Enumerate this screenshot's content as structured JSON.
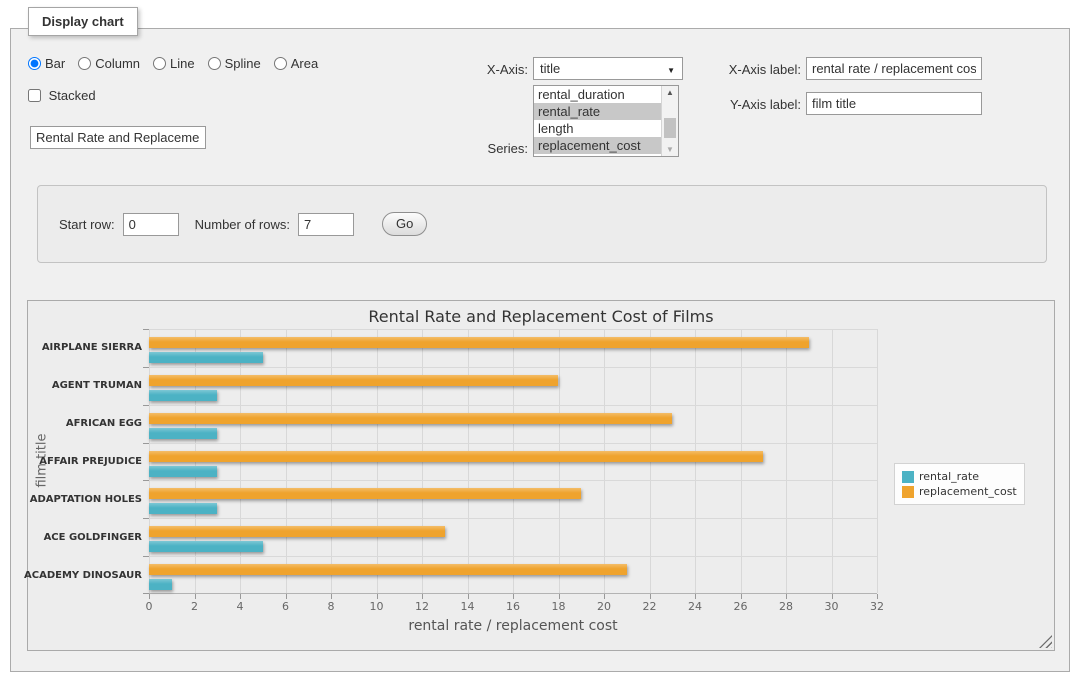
{
  "fieldset_legend": "Display chart",
  "chart_type_options": [
    {
      "label": "Bar",
      "selected": true
    },
    {
      "label": "Column",
      "selected": false
    },
    {
      "label": "Line",
      "selected": false
    },
    {
      "label": "Spline",
      "selected": false
    },
    {
      "label": "Area",
      "selected": false
    }
  ],
  "stacked": {
    "label": "Stacked",
    "checked": false
  },
  "chart_title_input": {
    "value": "Rental Rate and Replacement Cost of Films"
  },
  "x_axis_select": {
    "label": "X-Axis:",
    "value": "title"
  },
  "series_select": {
    "label": "Series:",
    "options": [
      {
        "label": "rental_duration",
        "selected": false
      },
      {
        "label": "rental_rate",
        "selected": true
      },
      {
        "label": "length",
        "selected": false
      },
      {
        "label": "replacement_cost",
        "selected": true
      }
    ],
    "scrollbar": {
      "up_arrow": "▲",
      "down_arrow": "▼"
    }
  },
  "x_axis_label_input": {
    "label": "X-Axis label:",
    "value": "rental rate / replacement cost"
  },
  "y_axis_label_input": {
    "label": "Y-Axis label:",
    "value": "film title"
  },
  "row_controls": {
    "start_row_label": "Start row:",
    "start_row_value": "0",
    "num_rows_label": "Number of rows:",
    "num_rows_value": "7",
    "go_label": "Go"
  },
  "select_arrow": "▼",
  "chart_data": {
    "type": "bar",
    "title": "Rental Rate and Replacement Cost of Films",
    "categories": [
      "AIRPLANE SIERRA",
      "AGENT TRUMAN",
      "AFRICAN EGG",
      "AFFAIR PREJUDICE",
      "ADAPTATION HOLES",
      "ACE GOLDFINGER",
      "ACADEMY DINOSAUR"
    ],
    "series": [
      {
        "name": "rental_rate",
        "color": "#4cb2c4",
        "values": [
          4.99,
          2.99,
          2.99,
          2.99,
          2.99,
          4.99,
          0.99
        ]
      },
      {
        "name": "replacement_cost",
        "color": "#efa32d",
        "values": [
          28.99,
          17.99,
          22.99,
          26.99,
          18.99,
          12.99,
          20.99
        ]
      }
    ],
    "xlabel": "rental rate / replacement cost",
    "ylabel": "film title",
    "xlim": [
      0,
      32
    ],
    "xticks": [
      0,
      2,
      4,
      6,
      8,
      10,
      12,
      14,
      16,
      18,
      20,
      22,
      24,
      26,
      28,
      30,
      32
    ],
    "grid": true,
    "legend_position": "right",
    "bar_visual_order_top_to_bottom": [
      "replacement_cost",
      "rental_rate"
    ]
  }
}
